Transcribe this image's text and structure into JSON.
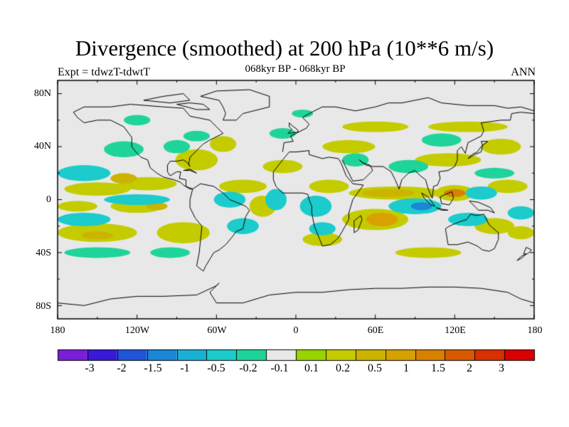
{
  "title": "Divergence (smoothed) at 200 hPa (10**6 m/s)",
  "subtitle": "068kyr BP - 068kyr BP",
  "left_label": "Expt = tdwzT-tdwtT",
  "right_label": "ANN",
  "map": {
    "background_color": "#e8e8e8",
    "y_axis_labels": [
      {
        "lat": 80,
        "text": "80N"
      },
      {
        "lat": 40,
        "text": "40N"
      },
      {
        "lat": 0,
        "text": "0"
      },
      {
        "lat": -40,
        "text": "40S"
      },
      {
        "lat": -80,
        "text": "80S"
      }
    ],
    "x_axis_labels": [
      {
        "lon": -180,
        "text": "180"
      },
      {
        "lon": -120,
        "text": "120W"
      },
      {
        "lon": -60,
        "text": "60W"
      },
      {
        "lon": 0,
        "text": "0"
      },
      {
        "lon": 60,
        "text": "60E"
      },
      {
        "lon": 120,
        "text": "120E"
      },
      {
        "lon": 180,
        "text": "180"
      }
    ]
  },
  "colorbar": {
    "colors": [
      "#7a1fd6",
      "#3a18d8",
      "#1f55d6",
      "#1a86d6",
      "#1ab0d6",
      "#1ccbcb",
      "#1fd49a",
      "#e8e8e8",
      "#98d400",
      "#c4cc00",
      "#ccb300",
      "#d8a000",
      "#d88000",
      "#d85a00",
      "#d83000",
      "#d80000"
    ],
    "labels": [
      "-3",
      "-2",
      "-1.5",
      "-1",
      "-0.5",
      "-0.2",
      "-0.1",
      "0.1",
      "0.2",
      "0.5",
      "1",
      "1.5",
      "2",
      "3"
    ]
  },
  "blobs": [
    {
      "lon": -112,
      "lat": 12,
      "rx": 22,
      "ry": 5,
      "c": 9
    },
    {
      "lon": -150,
      "lat": 8,
      "rx": 25,
      "ry": 5,
      "c": 9
    },
    {
      "lon": -130,
      "lat": 16,
      "rx": 10,
      "ry": 4,
      "c": 10
    },
    {
      "lon": -165,
      "lat": -5,
      "rx": 15,
      "ry": 4,
      "c": 9
    },
    {
      "lon": -120,
      "lat": -5,
      "rx": 20,
      "ry": 5,
      "c": 9
    },
    {
      "lon": -105,
      "lat": -5,
      "rx": 8,
      "ry": 3,
      "c": 10
    },
    {
      "lon": -150,
      "lat": -25,
      "rx": 30,
      "ry": 7,
      "c": 9
    },
    {
      "lon": -150,
      "lat": -27,
      "rx": 12,
      "ry": 3,
      "c": 10
    },
    {
      "lon": -85,
      "lat": -25,
      "rx": 20,
      "ry": 8,
      "c": 9
    },
    {
      "lon": -75,
      "lat": 30,
      "rx": 16,
      "ry": 8,
      "c": 9
    },
    {
      "lon": -55,
      "lat": 42,
      "rx": 10,
      "ry": 6,
      "c": 9
    },
    {
      "lon": -40,
      "lat": 10,
      "rx": 18,
      "ry": 5,
      "c": 9
    },
    {
      "lon": -25,
      "lat": -5,
      "rx": 10,
      "ry": 8,
      "c": 9
    },
    {
      "lon": -10,
      "lat": 25,
      "rx": 15,
      "ry": 5,
      "c": 9
    },
    {
      "lon": 25,
      "lat": 10,
      "rx": 15,
      "ry": 5,
      "c": 9
    },
    {
      "lon": 40,
      "lat": 40,
      "rx": 20,
      "ry": 5,
      "c": 9
    },
    {
      "lon": 60,
      "lat": 55,
      "rx": 25,
      "ry": 4,
      "c": 9
    },
    {
      "lon": 130,
      "lat": 55,
      "rx": 30,
      "ry": 4,
      "c": 9
    },
    {
      "lon": 115,
      "lat": 30,
      "rx": 25,
      "ry": 5,
      "c": 9
    },
    {
      "lon": 155,
      "lat": 40,
      "rx": 15,
      "ry": 6,
      "c": 9
    },
    {
      "lon": 75,
      "lat": 5,
      "rx": 35,
      "ry": 5,
      "c": 9
    },
    {
      "lon": 70,
      "lat": 5,
      "rx": 20,
      "ry": 3,
      "c": 10
    },
    {
      "lon": 60,
      "lat": -15,
      "rx": 25,
      "ry": 8,
      "c": 9
    },
    {
      "lon": 65,
      "lat": -15,
      "rx": 12,
      "ry": 5,
      "c": 11
    },
    {
      "lon": 120,
      "lat": 5,
      "rx": 15,
      "ry": 6,
      "c": 9
    },
    {
      "lon": 120,
      "lat": 5,
      "rx": 8,
      "ry": 3,
      "c": 12
    },
    {
      "lon": 160,
      "lat": 10,
      "rx": 15,
      "ry": 5,
      "c": 9
    },
    {
      "lon": 150,
      "lat": -20,
      "rx": 15,
      "ry": 6,
      "c": 9
    },
    {
      "lon": 170,
      "lat": -25,
      "rx": 10,
      "ry": 5,
      "c": 9
    },
    {
      "lon": 100,
      "lat": -40,
      "rx": 25,
      "ry": 4,
      "c": 9
    },
    {
      "lon": 20,
      "lat": -30,
      "rx": 15,
      "ry": 5,
      "c": 9
    },
    {
      "lon": -160,
      "lat": 20,
      "rx": 20,
      "ry": 6,
      "c": 5
    },
    {
      "lon": -130,
      "lat": 38,
      "rx": 15,
      "ry": 6,
      "c": 6
    },
    {
      "lon": -120,
      "lat": 0,
      "rx": 25,
      "ry": 4,
      "c": 5
    },
    {
      "lon": -160,
      "lat": -15,
      "rx": 20,
      "ry": 5,
      "c": 5
    },
    {
      "lon": -150,
      "lat": -40,
      "rx": 25,
      "ry": 4,
      "c": 6
    },
    {
      "lon": -95,
      "lat": -40,
      "rx": 15,
      "ry": 4,
      "c": 6
    },
    {
      "lon": -50,
      "lat": 0,
      "rx": 12,
      "ry": 6,
      "c": 5
    },
    {
      "lon": -40,
      "lat": -20,
      "rx": 12,
      "ry": 6,
      "c": 5
    },
    {
      "lon": -15,
      "lat": 0,
      "rx": 8,
      "ry": 8,
      "c": 5
    },
    {
      "lon": -75,
      "lat": 48,
      "rx": 10,
      "ry": 4,
      "c": 6
    },
    {
      "lon": -90,
      "lat": 40,
      "rx": 10,
      "ry": 5,
      "c": 6
    },
    {
      "lon": -10,
      "lat": 50,
      "rx": 10,
      "ry": 4,
      "c": 6
    },
    {
      "lon": 15,
      "lat": -5,
      "rx": 12,
      "ry": 8,
      "c": 5
    },
    {
      "lon": 20,
      "lat": -22,
      "rx": 10,
      "ry": 5,
      "c": 5
    },
    {
      "lon": 45,
      "lat": 30,
      "rx": 10,
      "ry": 5,
      "c": 6
    },
    {
      "lon": 85,
      "lat": 25,
      "rx": 15,
      "ry": 5,
      "c": 6
    },
    {
      "lon": 90,
      "lat": -5,
      "rx": 20,
      "ry": 6,
      "c": 5
    },
    {
      "lon": 95,
      "lat": -5,
      "rx": 8,
      "ry": 3,
      "c": 3
    },
    {
      "lon": 140,
      "lat": 5,
      "rx": 12,
      "ry": 5,
      "c": 5
    },
    {
      "lon": 150,
      "lat": 20,
      "rx": 15,
      "ry": 4,
      "c": 6
    },
    {
      "lon": 130,
      "lat": -15,
      "rx": 15,
      "ry": 5,
      "c": 5
    },
    {
      "lon": 170,
      "lat": -10,
      "rx": 10,
      "ry": 5,
      "c": 5
    },
    {
      "lon": 110,
      "lat": 45,
      "rx": 15,
      "ry": 5,
      "c": 6
    },
    {
      "lon": 5,
      "lat": 65,
      "rx": 8,
      "ry": 3,
      "c": 6
    },
    {
      "lon": -120,
      "lat": 60,
      "rx": 10,
      "ry": 4,
      "c": 6
    }
  ]
}
